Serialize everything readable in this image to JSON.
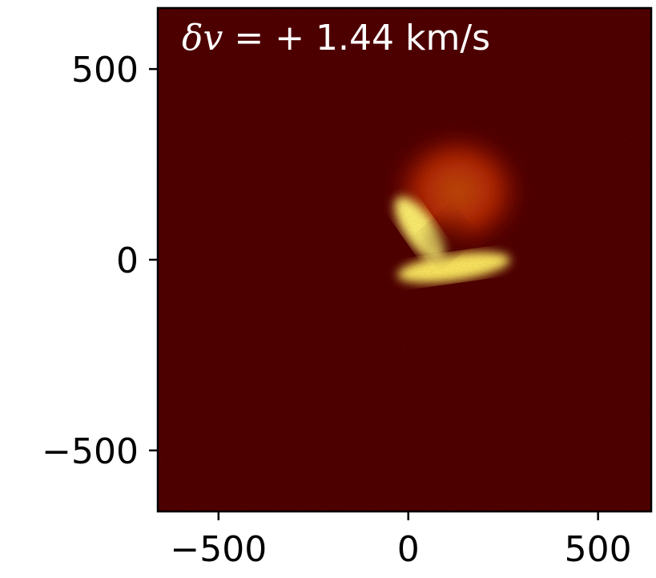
{
  "chart_data": {
    "type": "heatmap",
    "title": "",
    "xlabel": "",
    "ylabel": "",
    "xlim": [
      -660,
      640
    ],
    "ylim": [
      -660,
      660
    ],
    "xticks": [
      -500,
      0,
      500
    ],
    "yticks": [
      500,
      0,
      -500
    ],
    "xtick_labels": [
      "−500",
      "0",
      "500"
    ],
    "ytick_labels": [
      "500",
      "0",
      "−500"
    ],
    "annotation": {
      "math_prefix": "δv",
      "text": " = + 1.44 km/s",
      "placement": "top-left"
    },
    "colormap": "hot",
    "background_level": 0.12,
    "features": [
      {
        "name": "diffuse-halo",
        "x": 130,
        "y": 180,
        "rx": 180,
        "ry": 160,
        "peak": 0.55
      },
      {
        "name": "bright-arc-lower",
        "x": 120,
        "y": -20,
        "rx": 150,
        "ry": 35,
        "peak": 0.95
      },
      {
        "name": "bright-arc-left",
        "x": 30,
        "y": 80,
        "rx": 40,
        "ry": 100,
        "peak": 0.9
      },
      {
        "name": "dark-cavity",
        "x": 100,
        "y": 60,
        "rx": 60,
        "ry": 50,
        "peak": 0.2
      }
    ],
    "grid": false,
    "legend": "none"
  },
  "colors": {
    "frame": "#000000",
    "background": "#5a0000",
    "annotation": "#ffffff"
  }
}
